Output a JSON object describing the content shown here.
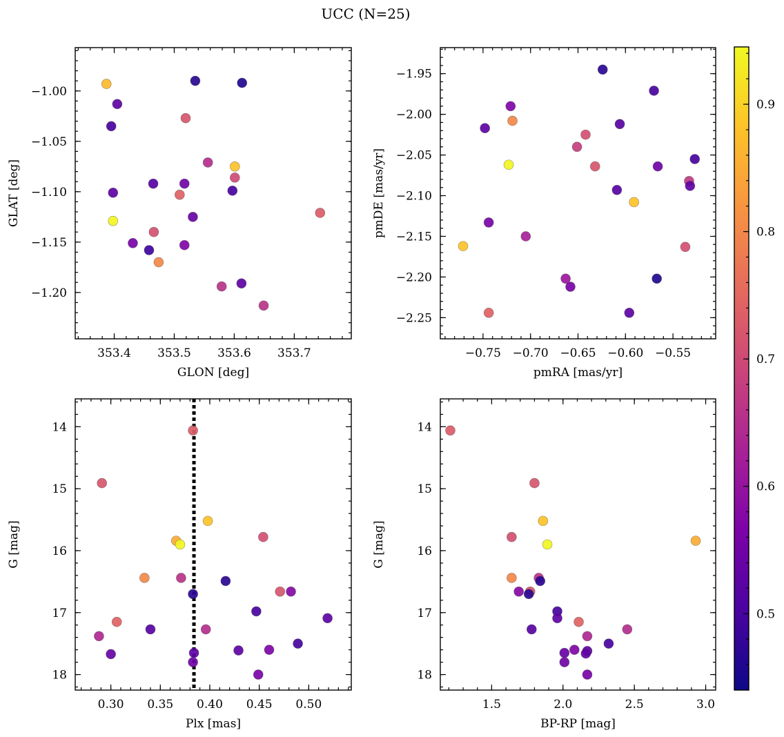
{
  "figure": {
    "title": "UCC (N=25)"
  },
  "colorbar": {
    "min": 0.44,
    "max": 0.945,
    "ticks": [
      0.5,
      0.6,
      0.7,
      0.8,
      0.9
    ],
    "tick_labels": [
      "0.5",
      "0.6",
      "0.7",
      "0.8",
      "0.9"
    ],
    "colormap": "plasma"
  },
  "chart_data": [
    {
      "type": "scatter",
      "xlabel": "GLON [deg]",
      "ylabel": "GLAT [deg]",
      "xlim": [
        353.335,
        353.795
      ],
      "ylim": [
        -1.246,
        -0.957
      ],
      "y_inverted": false,
      "xticks": [
        353.4,
        353.5,
        353.6,
        353.7
      ],
      "xtick_labels": [
        "353.4",
        "353.5",
        "353.6",
        "353.7"
      ],
      "yticks": [
        -1.0,
        -1.05,
        -1.1,
        -1.15,
        -1.2
      ],
      "ytick_labels": [
        "−1.00",
        "−1.05",
        "−1.10",
        "−1.15",
        "−1.20"
      ],
      "points": [
        {
          "x": 353.387,
          "y": -0.993,
          "c": 0.87
        },
        {
          "x": 353.535,
          "y": -0.99,
          "c": 0.47
        },
        {
          "x": 353.613,
          "y": -0.992,
          "c": 0.46
        },
        {
          "x": 353.405,
          "y": -1.013,
          "c": 0.53
        },
        {
          "x": 353.519,
          "y": -1.027,
          "c": 0.72
        },
        {
          "x": 353.395,
          "y": -1.035,
          "c": 0.5
        },
        {
          "x": 353.556,
          "y": -1.071,
          "c": 0.65
        },
        {
          "x": 353.601,
          "y": -1.075,
          "c": 0.88
        },
        {
          "x": 353.601,
          "y": -1.086,
          "c": 0.7
        },
        {
          "x": 353.465,
          "y": -1.092,
          "c": 0.52
        },
        {
          "x": 353.517,
          "y": -1.092,
          "c": 0.55
        },
        {
          "x": 353.597,
          "y": -1.099,
          "c": 0.5
        },
        {
          "x": 353.398,
          "y": -1.101,
          "c": 0.53
        },
        {
          "x": 353.509,
          "y": -1.103,
          "c": 0.74
        },
        {
          "x": 353.743,
          "y": -1.121,
          "c": 0.73
        },
        {
          "x": 353.531,
          "y": -1.125,
          "c": 0.54
        },
        {
          "x": 353.398,
          "y": -1.129,
          "c": 0.94
        },
        {
          "x": 353.466,
          "y": -1.14,
          "c": 0.71
        },
        {
          "x": 353.431,
          "y": -1.151,
          "c": 0.56
        },
        {
          "x": 353.517,
          "y": -1.153,
          "c": 0.57
        },
        {
          "x": 353.458,
          "y": -1.158,
          "c": 0.49
        },
        {
          "x": 353.474,
          "y": -1.17,
          "c": 0.8
        },
        {
          "x": 353.612,
          "y": -1.191,
          "c": 0.53
        },
        {
          "x": 353.579,
          "y": -1.194,
          "c": 0.66
        },
        {
          "x": 353.649,
          "y": -1.213,
          "c": 0.66
        }
      ]
    },
    {
      "type": "scatter",
      "xlabel": "pmRA [mas/yr]",
      "ylabel": "pmDE [mas/yr]",
      "xlim": [
        -0.795,
        -0.505
      ],
      "ylim": [
        -2.276,
        -1.918
      ],
      "y_inverted": false,
      "xticks": [
        -0.75,
        -0.7,
        -0.65,
        -0.6,
        -0.55
      ],
      "xtick_labels": [
        "−0.75",
        "−0.70",
        "−0.65",
        "−0.60",
        "−0.55"
      ],
      "yticks": [
        -1.95,
        -2.0,
        -2.05,
        -2.1,
        -2.15,
        -2.2,
        -2.25
      ],
      "ytick_labels": [
        "−1.95",
        "−2.00",
        "−2.05",
        "−2.10",
        "−2.15",
        "−2.20",
        "−2.25"
      ],
      "points": [
        {
          "x": -0.624,
          "y": -1.945,
          "c": 0.47
        },
        {
          "x": -0.57,
          "y": -1.971,
          "c": 0.5
        },
        {
          "x": -0.721,
          "y": -1.99,
          "c": 0.57
        },
        {
          "x": -0.719,
          "y": -2.008,
          "c": 0.8
        },
        {
          "x": -0.606,
          "y": -2.012,
          "c": 0.52
        },
        {
          "x": -0.748,
          "y": -2.017,
          "c": 0.53
        },
        {
          "x": -0.642,
          "y": -2.025,
          "c": 0.71
        },
        {
          "x": -0.651,
          "y": -2.04,
          "c": 0.68
        },
        {
          "x": -0.527,
          "y": -2.055,
          "c": 0.5
        },
        {
          "x": -0.723,
          "y": -2.062,
          "c": 0.94
        },
        {
          "x": -0.632,
          "y": -2.064,
          "c": 0.72
        },
        {
          "x": -0.566,
          "y": -2.064,
          "c": 0.55
        },
        {
          "x": -0.533,
          "y": -2.082,
          "c": 0.67
        },
        {
          "x": -0.532,
          "y": -2.088,
          "c": 0.53
        },
        {
          "x": -0.609,
          "y": -2.093,
          "c": 0.52
        },
        {
          "x": -0.591,
          "y": -2.108,
          "c": 0.88
        },
        {
          "x": -0.744,
          "y": -2.133,
          "c": 0.56
        },
        {
          "x": -0.705,
          "y": -2.15,
          "c": 0.63
        },
        {
          "x": -0.771,
          "y": -2.162,
          "c": 0.88
        },
        {
          "x": -0.537,
          "y": -2.163,
          "c": 0.71
        },
        {
          "x": -0.567,
          "y": -2.202,
          "c": 0.46
        },
        {
          "x": -0.663,
          "y": -2.202,
          "c": 0.61
        },
        {
          "x": -0.658,
          "y": -2.212,
          "c": 0.56
        },
        {
          "x": -0.744,
          "y": -2.244,
          "c": 0.74
        },
        {
          "x": -0.596,
          "y": -2.244,
          "c": 0.53
        }
      ]
    },
    {
      "type": "scatter",
      "xlabel": "Plx [mas]",
      "ylabel": "G [mag]",
      "xlim": [
        0.264,
        0.543
      ],
      "ylim": [
        18.25,
        13.55
      ],
      "y_inverted": true,
      "xticks": [
        0.3,
        0.35,
        0.4,
        0.45,
        0.5
      ],
      "xtick_labels": [
        "0.30",
        "0.35",
        "0.40",
        "0.45",
        "0.50"
      ],
      "yticks": [
        14,
        15,
        16,
        17,
        18
      ],
      "ytick_labels": [
        "14",
        "15",
        "16",
        "17",
        "18"
      ],
      "vline": {
        "x": 0.384,
        "style": "dotted"
      },
      "points": [
        {
          "x": 0.383,
          "y": 14.06,
          "c": 0.73
        },
        {
          "x": 0.291,
          "y": 14.91,
          "c": 0.72
        },
        {
          "x": 0.398,
          "y": 15.52,
          "c": 0.88
        },
        {
          "x": 0.454,
          "y": 15.78,
          "c": 0.71
        },
        {
          "x": 0.366,
          "y": 15.84,
          "c": 0.85
        },
        {
          "x": 0.37,
          "y": 15.9,
          "c": 0.94
        },
        {
          "x": 0.334,
          "y": 16.44,
          "c": 0.8
        },
        {
          "x": 0.371,
          "y": 16.44,
          "c": 0.66
        },
        {
          "x": 0.416,
          "y": 16.49,
          "c": 0.47
        },
        {
          "x": 0.471,
          "y": 16.66,
          "c": 0.72
        },
        {
          "x": 0.482,
          "y": 16.66,
          "c": 0.58
        },
        {
          "x": 0.383,
          "y": 16.7,
          "c": 0.47
        },
        {
          "x": 0.447,
          "y": 16.98,
          "c": 0.5
        },
        {
          "x": 0.519,
          "y": 17.09,
          "c": 0.53
        },
        {
          "x": 0.306,
          "y": 17.15,
          "c": 0.74
        },
        {
          "x": 0.34,
          "y": 17.27,
          "c": 0.52
        },
        {
          "x": 0.396,
          "y": 17.27,
          "c": 0.65
        },
        {
          "x": 0.288,
          "y": 17.38,
          "c": 0.64
        },
        {
          "x": 0.489,
          "y": 17.5,
          "c": 0.5
        },
        {
          "x": 0.429,
          "y": 17.61,
          "c": 0.53
        },
        {
          "x": 0.46,
          "y": 17.6,
          "c": 0.57
        },
        {
          "x": 0.384,
          "y": 17.65,
          "c": 0.53
        },
        {
          "x": 0.3,
          "y": 17.67,
          "c": 0.54
        },
        {
          "x": 0.383,
          "y": 17.8,
          "c": 0.55
        },
        {
          "x": 0.449,
          "y": 18.0,
          "c": 0.56
        }
      ]
    },
    {
      "type": "scatter",
      "xlabel": "BP-RP [mag]",
      "ylabel": "G [mag]",
      "xlim": [
        1.14,
        3.07
      ],
      "ylim": [
        18.25,
        13.55
      ],
      "y_inverted": true,
      "xticks": [
        1.5,
        2.0,
        2.5,
        3.0
      ],
      "xtick_labels": [
        "1.5",
        "2.0",
        "2.5",
        "3.0"
      ],
      "yticks": [
        14,
        15,
        16,
        17,
        18
      ],
      "ytick_labels": [
        "14",
        "15",
        "16",
        "17",
        "18"
      ],
      "points": [
        {
          "x": 1.21,
          "y": 14.06,
          "c": 0.73
        },
        {
          "x": 1.8,
          "y": 14.91,
          "c": 0.72
        },
        {
          "x": 1.86,
          "y": 15.52,
          "c": 0.88
        },
        {
          "x": 1.64,
          "y": 15.78,
          "c": 0.71
        },
        {
          "x": 2.93,
          "y": 15.84,
          "c": 0.85
        },
        {
          "x": 1.89,
          "y": 15.9,
          "c": 0.94
        },
        {
          "x": 1.64,
          "y": 16.44,
          "c": 0.8
        },
        {
          "x": 1.83,
          "y": 16.44,
          "c": 0.66
        },
        {
          "x": 1.84,
          "y": 16.49,
          "c": 0.47
        },
        {
          "x": 1.69,
          "y": 16.66,
          "c": 0.58
        },
        {
          "x": 1.77,
          "y": 16.66,
          "c": 0.72
        },
        {
          "x": 1.76,
          "y": 16.7,
          "c": 0.47
        },
        {
          "x": 1.96,
          "y": 16.98,
          "c": 0.5
        },
        {
          "x": 1.96,
          "y": 17.09,
          "c": 0.53
        },
        {
          "x": 2.11,
          "y": 17.15,
          "c": 0.74
        },
        {
          "x": 1.78,
          "y": 17.27,
          "c": 0.52
        },
        {
          "x": 2.45,
          "y": 17.27,
          "c": 0.65
        },
        {
          "x": 2.17,
          "y": 17.38,
          "c": 0.64
        },
        {
          "x": 2.32,
          "y": 17.5,
          "c": 0.5
        },
        {
          "x": 2.08,
          "y": 17.6,
          "c": 0.57
        },
        {
          "x": 2.17,
          "y": 17.62,
          "c": 0.53
        },
        {
          "x": 2.01,
          "y": 17.65,
          "c": 0.54
        },
        {
          "x": 2.16,
          "y": 17.66,
          "c": 0.53
        },
        {
          "x": 2.01,
          "y": 17.8,
          "c": 0.55
        },
        {
          "x": 2.17,
          "y": 18.0,
          "c": 0.56
        }
      ]
    }
  ]
}
